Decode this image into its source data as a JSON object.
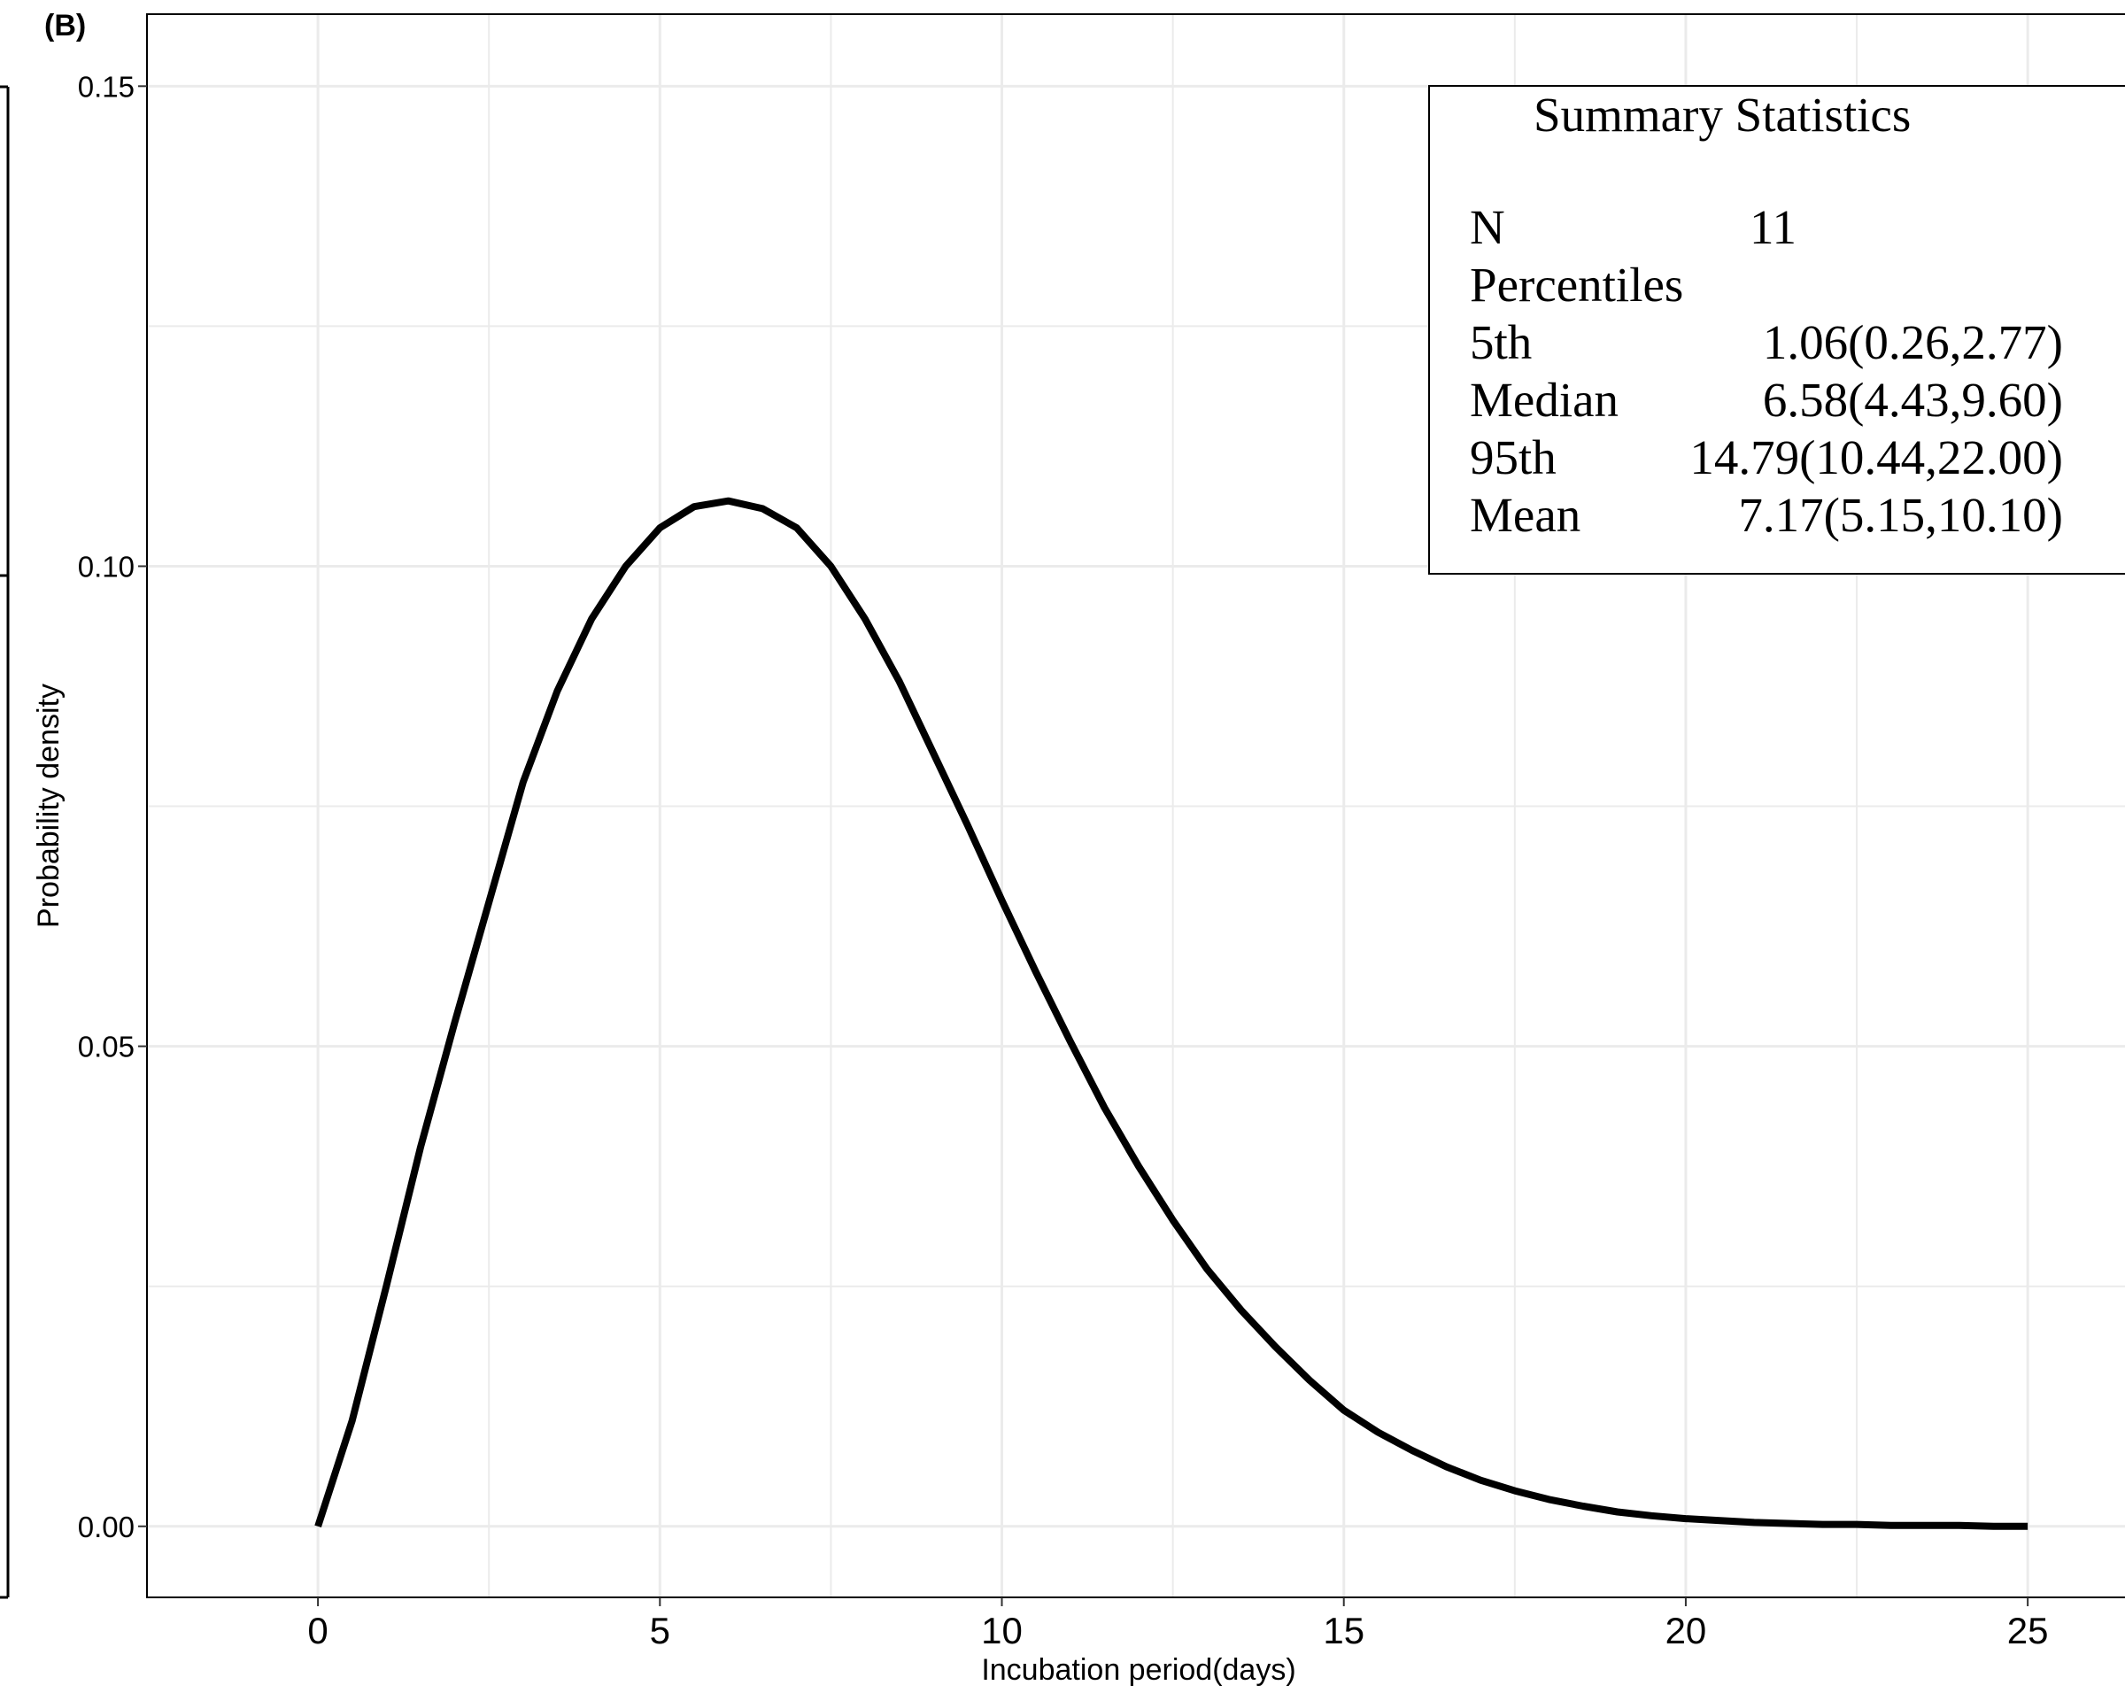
{
  "panel_label": "(B)",
  "chart_data": {
    "type": "line",
    "xlabel": "Incubation period(days)",
    "ylabel": "Probability density",
    "xlim": [
      -2.5,
      26.5
    ],
    "ylim": [
      -0.0074,
      0.1575
    ],
    "x_ticks": [
      0,
      5,
      10,
      15,
      20,
      25
    ],
    "x_tick_labels": [
      "0",
      "5",
      "10",
      "15",
      "20",
      "25"
    ],
    "y_ticks": [
      0,
      0.05,
      0.1,
      0.15
    ],
    "y_tick_labels": [
      "0.00",
      "0.05",
      "0.10",
      "0.15"
    ],
    "grid": true,
    "series": [
      {
        "color": "#000000",
        "x": [
          0,
          0.5,
          1,
          1.5,
          2,
          2.5,
          3,
          3.5,
          4,
          4.5,
          5,
          5.5,
          6,
          6.5,
          7,
          7.5,
          8,
          8.5,
          9,
          9.5,
          10,
          10.5,
          11,
          11.5,
          12,
          12.5,
          13,
          13.5,
          14,
          14.5,
          15,
          15.5,
          16,
          16.5,
          17,
          17.5,
          18,
          18.5,
          19,
          19.5,
          20,
          20.5,
          21,
          21.5,
          22,
          22.5,
          23,
          23.5,
          24,
          24.5,
          25
        ],
        "y": [
          0.0,
          0.011,
          0.025,
          0.0395,
          0.0525,
          0.065,
          0.0775,
          0.087,
          0.0945,
          0.1,
          0.104,
          0.1062,
          0.1068,
          0.106,
          0.104,
          0.1,
          0.0945,
          0.088,
          0.0805,
          0.073,
          0.0652,
          0.0577,
          0.0505,
          0.0436,
          0.0375,
          0.0319,
          0.0268,
          0.0225,
          0.0187,
          0.0152,
          0.0121,
          0.0098,
          0.0079,
          0.0062,
          0.0048,
          0.0037,
          0.0028,
          0.0021,
          0.0015,
          0.0011,
          0.0008,
          0.0006,
          0.0004,
          0.0003,
          0.0002,
          0.0002,
          0.0001,
          0.0001,
          0.0001,
          0.0,
          0.0
        ]
      }
    ]
  },
  "summary": {
    "title": "Summary Statistics",
    "rows": [
      {
        "label": "N",
        "value": "11"
      },
      {
        "label": "Percentiles",
        "value": ""
      },
      {
        "label": "5th",
        "value": "1.06(0.26,2.77)"
      },
      {
        "label": "Median",
        "value": "6.58(4.43,9.60)"
      },
      {
        "label": "95th",
        "value": "14.79(10.44,22.00)"
      },
      {
        "label": "Mean",
        "value": "7.17(5.15,10.10)"
      }
    ]
  },
  "colors": {
    "line": "#000000",
    "grid": "#ebebeb",
    "frame": "#000000",
    "background": "#ffffff"
  }
}
